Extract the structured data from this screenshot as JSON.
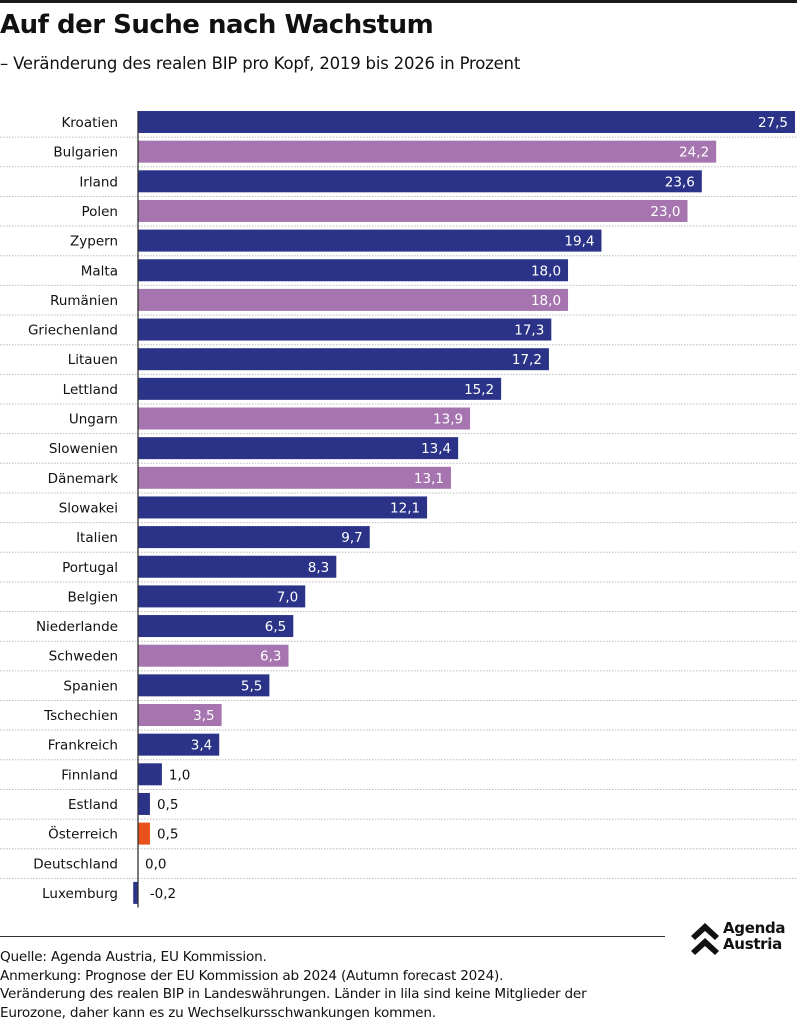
{
  "header": {
    "title": "Auf der Suche nach Wachstum",
    "subtitle": "– Veränderung des realen BIP pro Kopf, 2019 bis 2026 in Prozent"
  },
  "chart_data": {
    "type": "bar",
    "orientation": "horizontal",
    "title": "Auf der Suche nach Wachstum",
    "subtitle": "– Veränderung des realen BIP pro Kopf, 2019 bis 2026 in Prozent",
    "xlabel": "",
    "ylabel": "",
    "xlim": [
      -0.2,
      27.5
    ],
    "grid": false,
    "legend": "none",
    "colors": {
      "eurozone": "#2a3388",
      "non_eurozone": "#a674ae",
      "highlight": "#e8501c",
      "value_label_inside": "#ffffff",
      "value_label_outside": "#111111"
    },
    "categories": [
      "Kroatien",
      "Bulgarien",
      "Irland",
      "Polen",
      "Zypern",
      "Malta",
      "Rumänien",
      "Griechenland",
      "Litauen",
      "Lettland",
      "Ungarn",
      "Slowenien",
      "Dänemark",
      "Slowakei",
      "Italien",
      "Portugal",
      "Belgien",
      "Niederlande",
      "Schweden",
      "Spanien",
      "Tschechien",
      "Frankreich",
      "Finnland",
      "Estland",
      "Österreich",
      "Deutschland",
      "Luxemburg"
    ],
    "values": [
      27.5,
      24.2,
      23.6,
      23.0,
      19.4,
      18.0,
      18.0,
      17.3,
      17.2,
      15.2,
      13.9,
      13.4,
      13.1,
      12.1,
      9.7,
      8.3,
      7.0,
      6.5,
      6.3,
      5.5,
      3.5,
      3.4,
      1.0,
      0.5,
      0.5,
      0.0,
      -0.2
    ],
    "value_labels": [
      "27,5",
      "24,2",
      "23,6",
      "23,0",
      "19,4",
      "18,0",
      "18,0",
      "17,3",
      "17,2",
      "15,2",
      "13,9",
      "13,4",
      "13,1",
      "12,1",
      "9,7",
      "8,3",
      "7,0",
      "6,5",
      "6,3",
      "5,5",
      "3,5",
      "3,4",
      "1,0",
      "0,5",
      "0,5",
      "0,0",
      "-0,2"
    ],
    "groups": [
      "eurozone",
      "non_eurozone",
      "eurozone",
      "non_eurozone",
      "eurozone",
      "eurozone",
      "non_eurozone",
      "eurozone",
      "eurozone",
      "eurozone",
      "non_eurozone",
      "eurozone",
      "non_eurozone",
      "eurozone",
      "eurozone",
      "eurozone",
      "eurozone",
      "eurozone",
      "non_eurozone",
      "eurozone",
      "non_eurozone",
      "eurozone",
      "eurozone",
      "eurozone",
      "highlight",
      "eurozone",
      "eurozone"
    ]
  },
  "footer": {
    "lines": [
      "Quelle: Agenda Austria, EU Kommission.",
      "Anmerkung: Prognose der EU Kommission ab 2024 (Autumn forecast 2024).",
      "Veränderung des realen BIP in Landeswährungen. Länder in lila sind keine Mitglieder der",
      "Eurozone, daher kann es zu Wechselkursschwankungen kommen."
    ]
  },
  "logo": {
    "line1": "Agenda",
    "line2": "Austria",
    "icon": "double-chevron-up-icon"
  }
}
